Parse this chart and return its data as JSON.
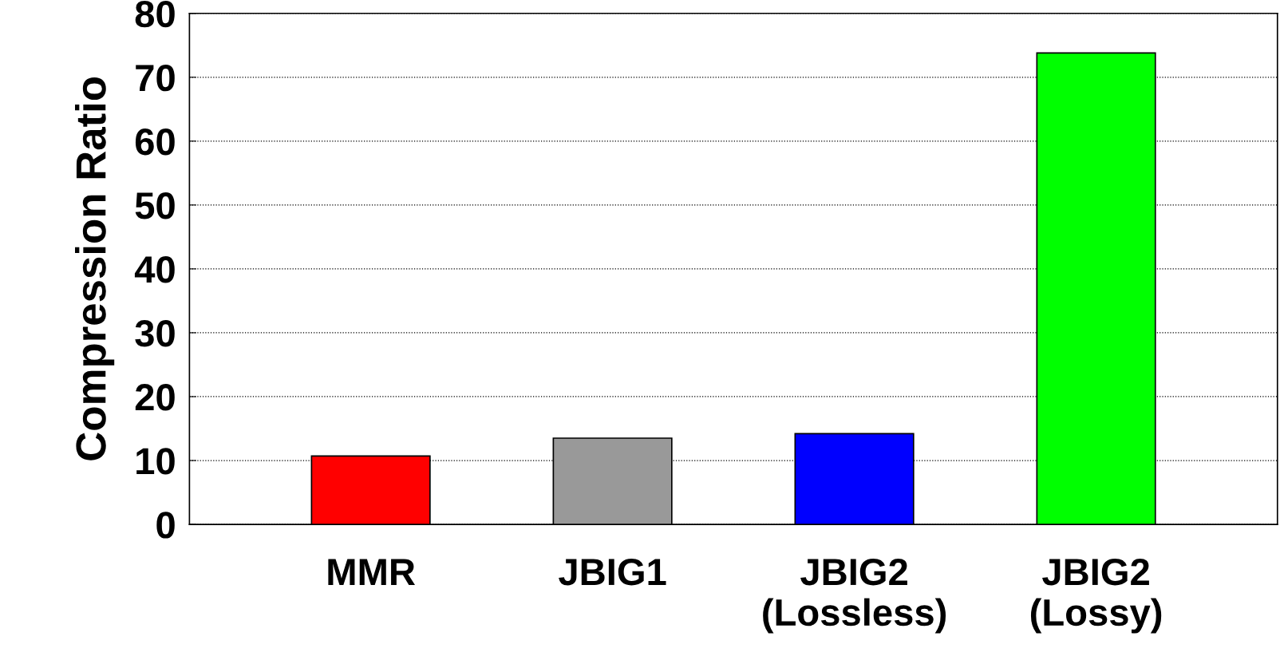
{
  "chart_data": {
    "type": "bar",
    "ylabel": "Compression Ratio",
    "categories": [
      "MMR",
      "JBIG1",
      "JBIG2\n(Lossless)",
      "JBIG2\n(Lossy)"
    ],
    "values": [
      10.7,
      13.5,
      14.2,
      73.8
    ],
    "colors": [
      "#ff0000",
      "#999999",
      "#0000ff",
      "#00ff00"
    ],
    "ylim": [
      0,
      80
    ],
    "yticks": [
      0,
      10,
      20,
      30,
      40,
      50,
      60,
      70,
      80
    ],
    "grid": "y"
  }
}
